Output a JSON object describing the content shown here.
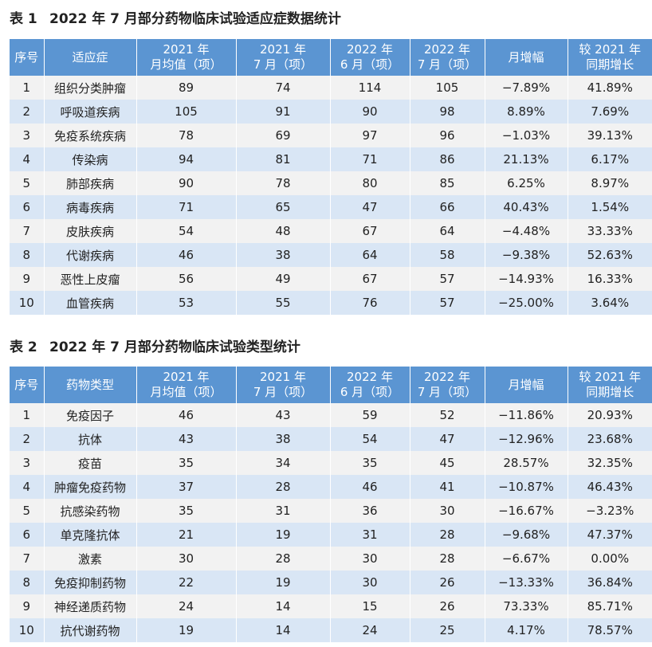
{
  "table1": {
    "caption_no": "表 1",
    "caption_text": "2022 年 7 月部分药物临床试验适应症数据统计",
    "headers": [
      {
        "l1": "序号",
        "l2": ""
      },
      {
        "l1": "适应症",
        "l2": ""
      },
      {
        "l1": "2021 年",
        "l2": "月均值（项）"
      },
      {
        "l1": "2021 年",
        "l2": "7 月（项）"
      },
      {
        "l1": "2022 年",
        "l2": "6 月（项）"
      },
      {
        "l1": "2022 年",
        "l2": "7 月（项）"
      },
      {
        "l1": "月增幅",
        "l2": ""
      },
      {
        "l1": "较 2021 年",
        "l2": "同期增长"
      }
    ],
    "rows": [
      [
        "1",
        "组织分类肿瘤",
        "89",
        "74",
        "114",
        "105",
        "−7.89%",
        "41.89%"
      ],
      [
        "2",
        "呼吸道疾病",
        "105",
        "91",
        "90",
        "98",
        "8.89%",
        "7.69%"
      ],
      [
        "3",
        "免疫系统疾病",
        "78",
        "69",
        "97",
        "96",
        "−1.03%",
        "39.13%"
      ],
      [
        "4",
        "传染病",
        "94",
        "81",
        "71",
        "86",
        "21.13%",
        "6.17%"
      ],
      [
        "5",
        "肺部疾病",
        "90",
        "78",
        "80",
        "85",
        "6.25%",
        "8.97%"
      ],
      [
        "6",
        "病毒疾病",
        "71",
        "65",
        "47",
        "66",
        "40.43%",
        "1.54%"
      ],
      [
        "7",
        "皮肤疾病",
        "54",
        "48",
        "67",
        "64",
        "−4.48%",
        "33.33%"
      ],
      [
        "8",
        "代谢疾病",
        "46",
        "38",
        "64",
        "58",
        "−9.38%",
        "52.63%"
      ],
      [
        "9",
        "恶性上皮瘤",
        "56",
        "49",
        "67",
        "57",
        "−14.93%",
        "16.33%"
      ],
      [
        "10",
        "血管疾病",
        "53",
        "55",
        "76",
        "57",
        "−25.00%",
        "3.64%"
      ]
    ]
  },
  "table2": {
    "caption_no": "表 2",
    "caption_text": "2022 年 7 月部分药物临床试验类型统计",
    "headers": [
      {
        "l1": "序号",
        "l2": ""
      },
      {
        "l1": "药物类型",
        "l2": ""
      },
      {
        "l1": "2021 年",
        "l2": "月均值（项）"
      },
      {
        "l1": "2021 年",
        "l2": "7 月（项）"
      },
      {
        "l1": "2022 年",
        "l2": "6 月（项）"
      },
      {
        "l1": "2022 年",
        "l2": "7 月（项）"
      },
      {
        "l1": "月增幅",
        "l2": ""
      },
      {
        "l1": "较 2021 年",
        "l2": "同期增长"
      }
    ],
    "rows": [
      [
        "1",
        "免疫因子",
        "46",
        "43",
        "59",
        "52",
        "−11.86%",
        "20.93%"
      ],
      [
        "2",
        "抗体",
        "43",
        "38",
        "54",
        "47",
        "−12.96%",
        "23.68%"
      ],
      [
        "3",
        "疫苗",
        "35",
        "34",
        "35",
        "45",
        "28.57%",
        "32.35%"
      ],
      [
        "4",
        "肿瘤免疫药物",
        "37",
        "28",
        "46",
        "41",
        "−10.87%",
        "46.43%"
      ],
      [
        "5",
        "抗感染药物",
        "35",
        "31",
        "36",
        "30",
        "−16.67%",
        "−3.23%"
      ],
      [
        "6",
        "单克隆抗体",
        "21",
        "19",
        "31",
        "28",
        "−9.68%",
        "47.37%"
      ],
      [
        "7",
        "激素",
        "30",
        "28",
        "30",
        "28",
        "−6.67%",
        "0.00%"
      ],
      [
        "8",
        "免疫抑制药物",
        "22",
        "19",
        "30",
        "26",
        "−13.33%",
        "36.84%"
      ],
      [
        "9",
        "神经递质药物",
        "24",
        "14",
        "15",
        "26",
        "73.33%",
        "85.71%"
      ],
      [
        "10",
        "抗代谢药物",
        "19",
        "14",
        "24",
        "25",
        "4.17%",
        "78.57%"
      ]
    ]
  }
}
